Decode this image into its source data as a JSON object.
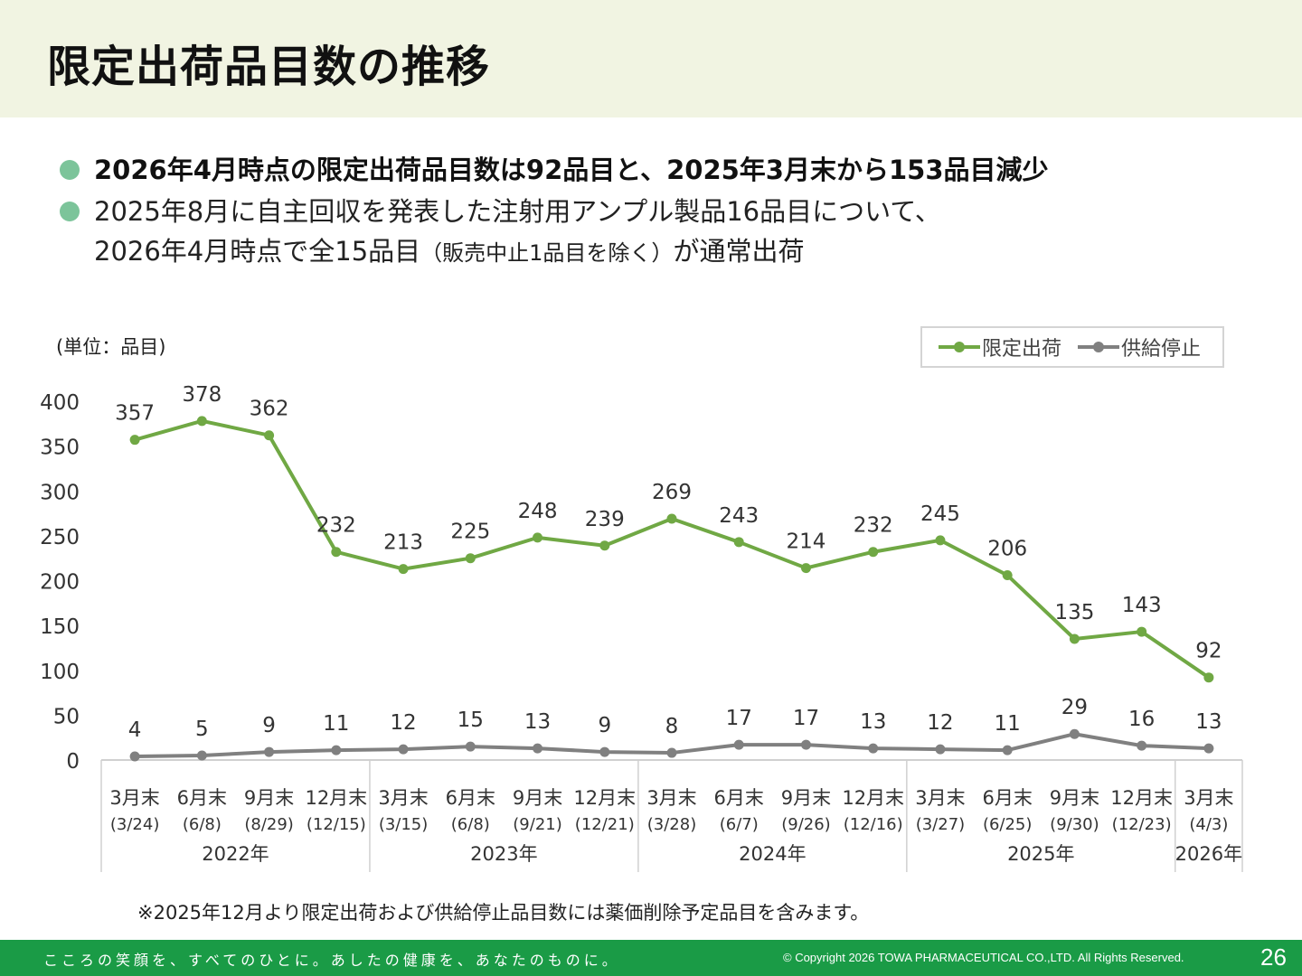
{
  "title": "限定出荷品目数の推移",
  "bullets": {
    "b1": "2026年4月時点の限定出荷品目数は92品目と、2025年3月末から153品目減少",
    "b2_line1": "2025年8月に自主回収を発表した注射用アンプル製品16品目について、",
    "b2_line2a": "2026年4月時点で全15品目",
    "b2_line2b": "（販売中止1品目を除く）",
    "b2_line2c": "が通常出荷"
  },
  "unit_label": "(単位：品目)",
  "colors": {
    "limited": "#70a844",
    "suspended": "#808080",
    "title_bg": "#f1f4e2",
    "footer_bg": "#1a9b46",
    "bullet_dot": "#7cc49a"
  },
  "chart_data": {
    "type": "line",
    "ylim": [
      0,
      400
    ],
    "yticks": [
      "0",
      "50",
      "100",
      "150",
      "200",
      "250",
      "300",
      "350",
      "400"
    ],
    "categories": [
      {
        "period": "3月末",
        "date": "(3/24)"
      },
      {
        "period": "6月末",
        "date": "(6/8)"
      },
      {
        "period": "9月末",
        "date": "(8/29)"
      },
      {
        "period": "12月末",
        "date": "(12/15)"
      },
      {
        "period": "3月末",
        "date": "(3/15)"
      },
      {
        "period": "6月末",
        "date": "(6/8)"
      },
      {
        "period": "9月末",
        "date": "(9/21)"
      },
      {
        "period": "12月末",
        "date": "(12/21)"
      },
      {
        "period": "3月末",
        "date": "(3/28)"
      },
      {
        "period": "6月末",
        "date": "(6/7)"
      },
      {
        "period": "9月末",
        "date": "(9/26)"
      },
      {
        "period": "12月末",
        "date": "(12/16)"
      },
      {
        "period": "3月末",
        "date": "(3/27)"
      },
      {
        "period": "6月末",
        "date": "(6/25)"
      },
      {
        "period": "9月末",
        "date": "(9/30)"
      },
      {
        "period": "12月末",
        "date": "(12/23)"
      },
      {
        "period": "3月末",
        "date": "(4/3)"
      }
    ],
    "years": [
      {
        "label": "2022年",
        "count": 4
      },
      {
        "label": "2023年",
        "count": 4
      },
      {
        "label": "2024年",
        "count": 4
      },
      {
        "label": "2025年",
        "count": 4
      },
      {
        "label": "2026年",
        "count": 1
      }
    ],
    "series": [
      {
        "name": "限定出荷",
        "color": "#70a844",
        "values": [
          357,
          378,
          362,
          232,
          213,
          225,
          248,
          239,
          269,
          243,
          214,
          232,
          245,
          206,
          135,
          143,
          92
        ]
      },
      {
        "name": "供給停止",
        "color": "#808080",
        "values": [
          4,
          5,
          9,
          11,
          12,
          15,
          13,
          9,
          8,
          17,
          17,
          13,
          12,
          11,
          29,
          16,
          13
        ]
      }
    ],
    "legend_position": "top-right",
    "grid": false
  },
  "footnote": "※2025年12月より限定出荷および供給停止品目数には薬価削除予定品目を含みます。",
  "footer": {
    "slogan": "こころの笑顔を、すべてのひとに。あしたの健康を、あなたのものに。",
    "copyright": "© Copyright 2026 TOWA PHARMACEUTICAL CO.,LTD. All Rights Reserved.",
    "page": "26"
  }
}
